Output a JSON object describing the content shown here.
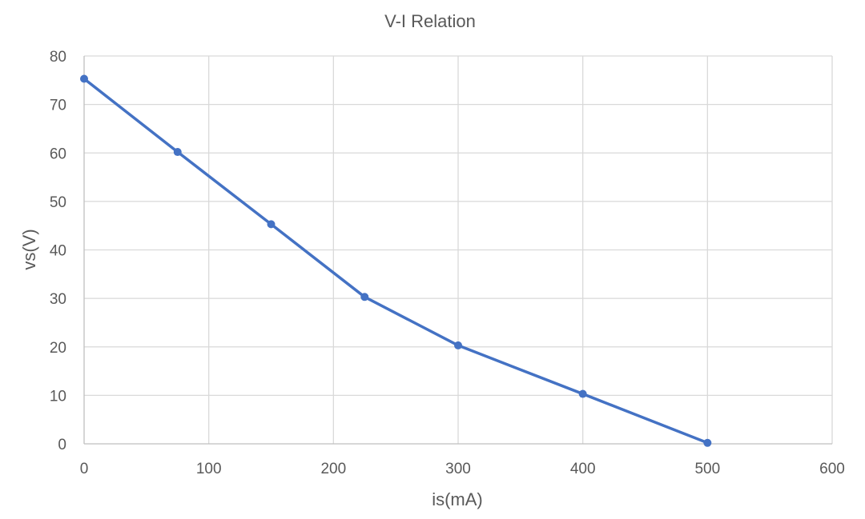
{
  "chart_data": {
    "type": "scatter",
    "title": "V-I Relation",
    "xlabel": "is(mA)",
    "ylabel": "vs(V)",
    "xlim": [
      0,
      600
    ],
    "ylim": [
      0,
      80
    ],
    "xticks": [
      0,
      100,
      200,
      300,
      400,
      500,
      600
    ],
    "yticks": [
      0,
      10,
      20,
      30,
      40,
      50,
      60,
      70,
      80
    ],
    "grid": true,
    "legend": "none",
    "series": [
      {
        "color": "#4472c4",
        "markers": true,
        "lines": true,
        "x": [
          0,
          75,
          150,
          225,
          300,
          400,
          500
        ],
        "y": [
          75.3,
          60.2,
          45.3,
          30.3,
          20.3,
          10.3,
          0.2
        ]
      }
    ]
  }
}
